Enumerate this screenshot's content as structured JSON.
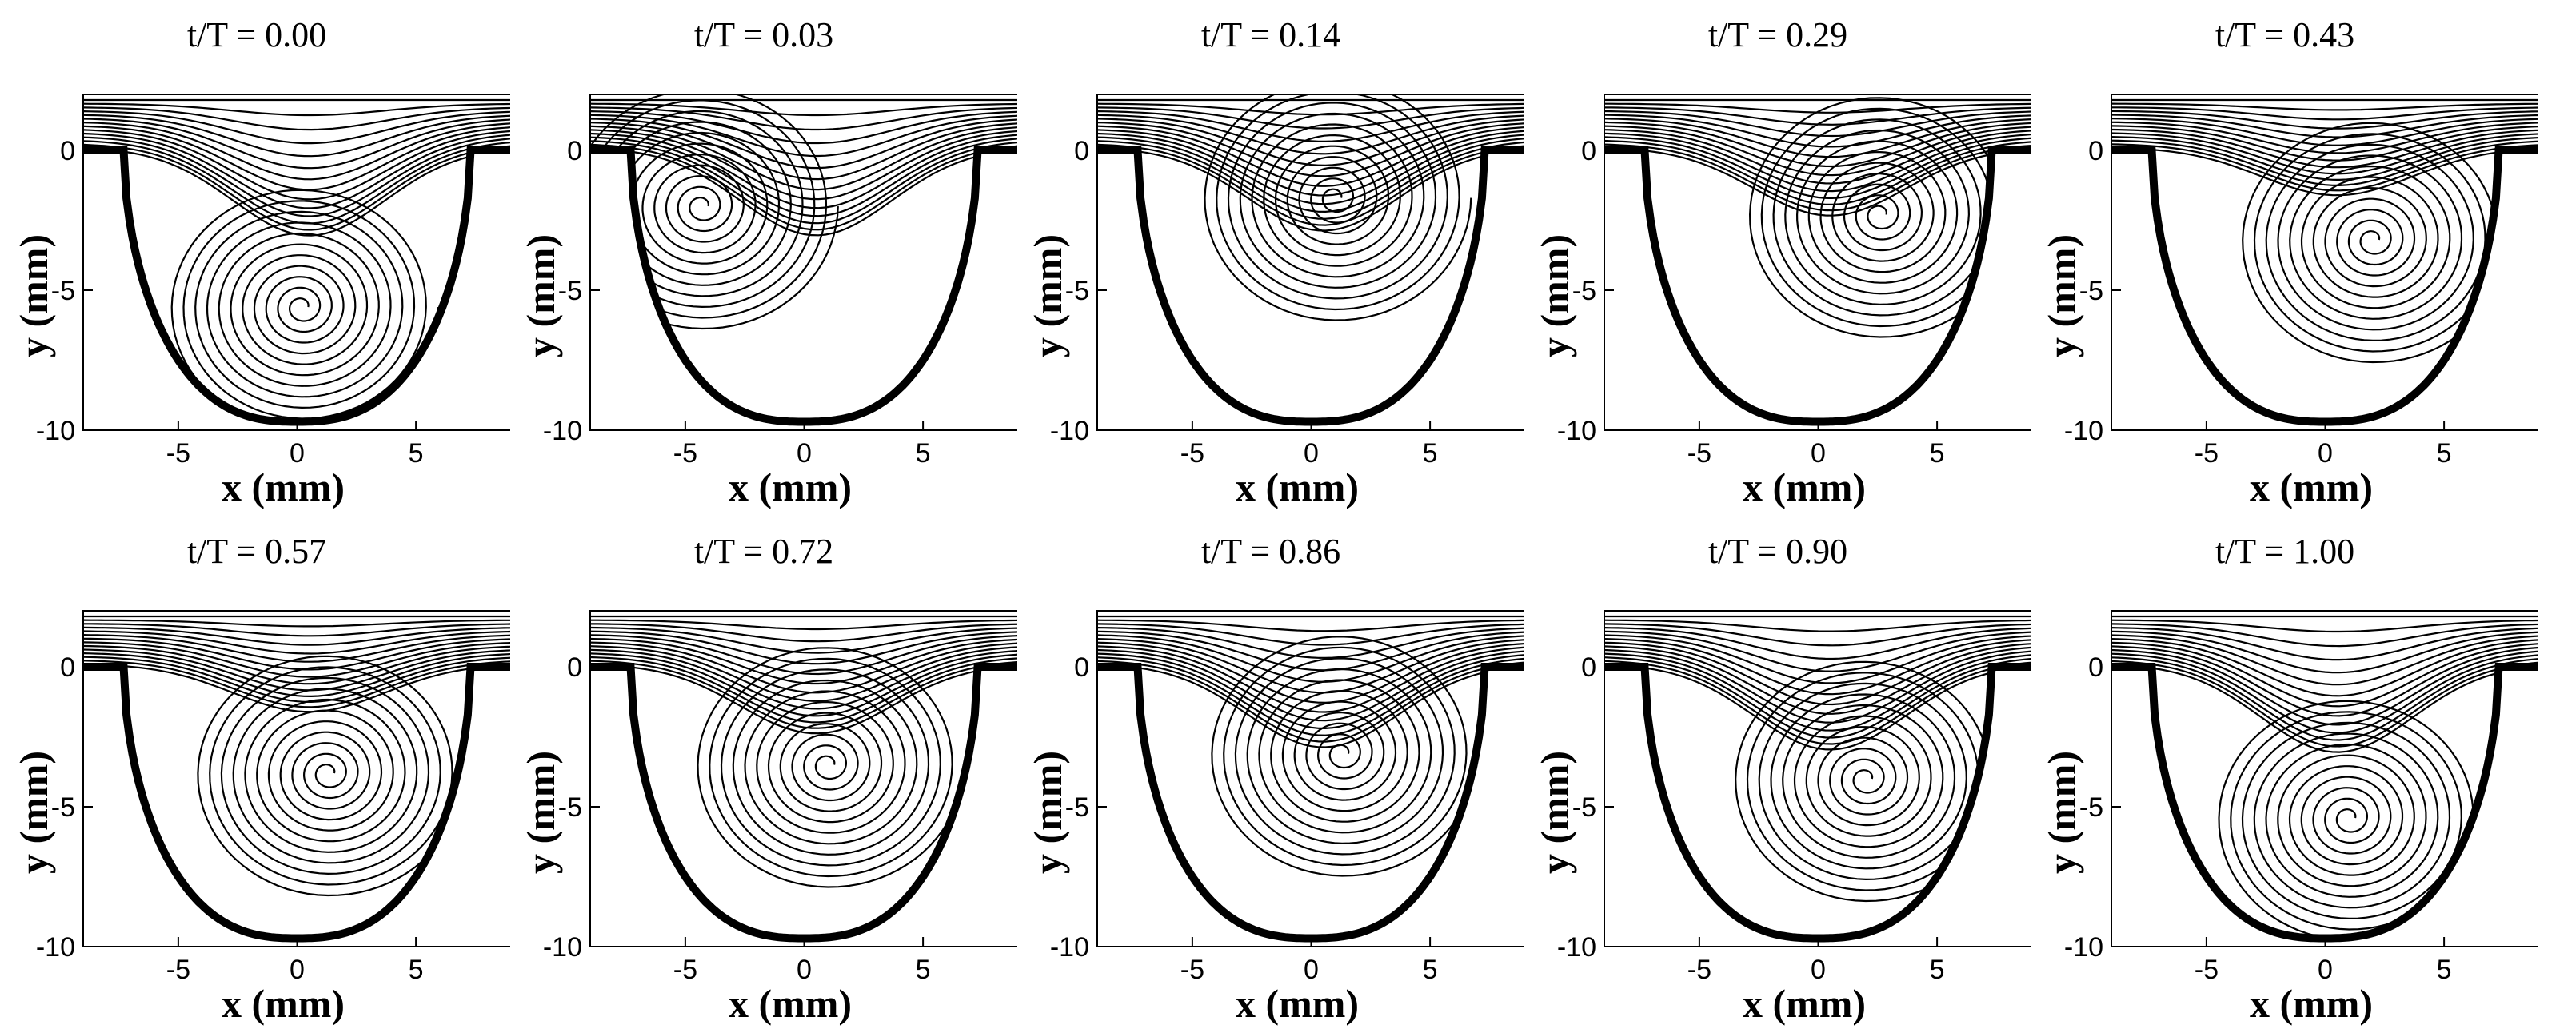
{
  "axes": {
    "xlabel": "x (mm)",
    "ylabel": "y (mm)",
    "xlim": [
      -9,
      9
    ],
    "ylim": [
      -10,
      2
    ],
    "xticks": [
      -5,
      0,
      5
    ],
    "yticks": [
      0,
      -5,
      -10
    ]
  },
  "panels": [
    {
      "title": "t/T = 0.00",
      "phase": 0.0,
      "vortex": {
        "x": 0.2,
        "y": -5.6
      }
    },
    {
      "title": "t/T = 0.03",
      "phase": 0.03,
      "vortex": {
        "x": -4.3,
        "y": -2.0
      }
    },
    {
      "title": "t/T = 0.14",
      "phase": 0.14,
      "vortex": {
        "x": 1.0,
        "y": -1.7
      }
    },
    {
      "title": "t/T = 0.29",
      "phase": 0.29,
      "vortex": {
        "x": 2.6,
        "y": -2.3
      }
    },
    {
      "title": "t/T = 0.43",
      "phase": 0.43,
      "vortex": {
        "x": 2.0,
        "y": -3.2
      }
    },
    {
      "title": "t/T = 0.57",
      "phase": 0.57,
      "vortex": {
        "x": 1.3,
        "y": -3.8
      }
    },
    {
      "title": "t/T = 0.72",
      "phase": 0.72,
      "vortex": {
        "x": 1.0,
        "y": -3.5
      }
    },
    {
      "title": "t/T = 0.86",
      "phase": 0.86,
      "vortex": {
        "x": 1.3,
        "y": -3.1
      }
    },
    {
      "title": "t/T = 0.90",
      "phase": 0.9,
      "vortex": {
        "x": 2.0,
        "y": -4.0
      }
    },
    {
      "title": "t/T = 1.00",
      "phase": 1.0,
      "vortex": {
        "x": 1.0,
        "y": -5.4
      }
    }
  ],
  "colors": {
    "stroke": "#000000",
    "background": "#ffffff"
  }
}
